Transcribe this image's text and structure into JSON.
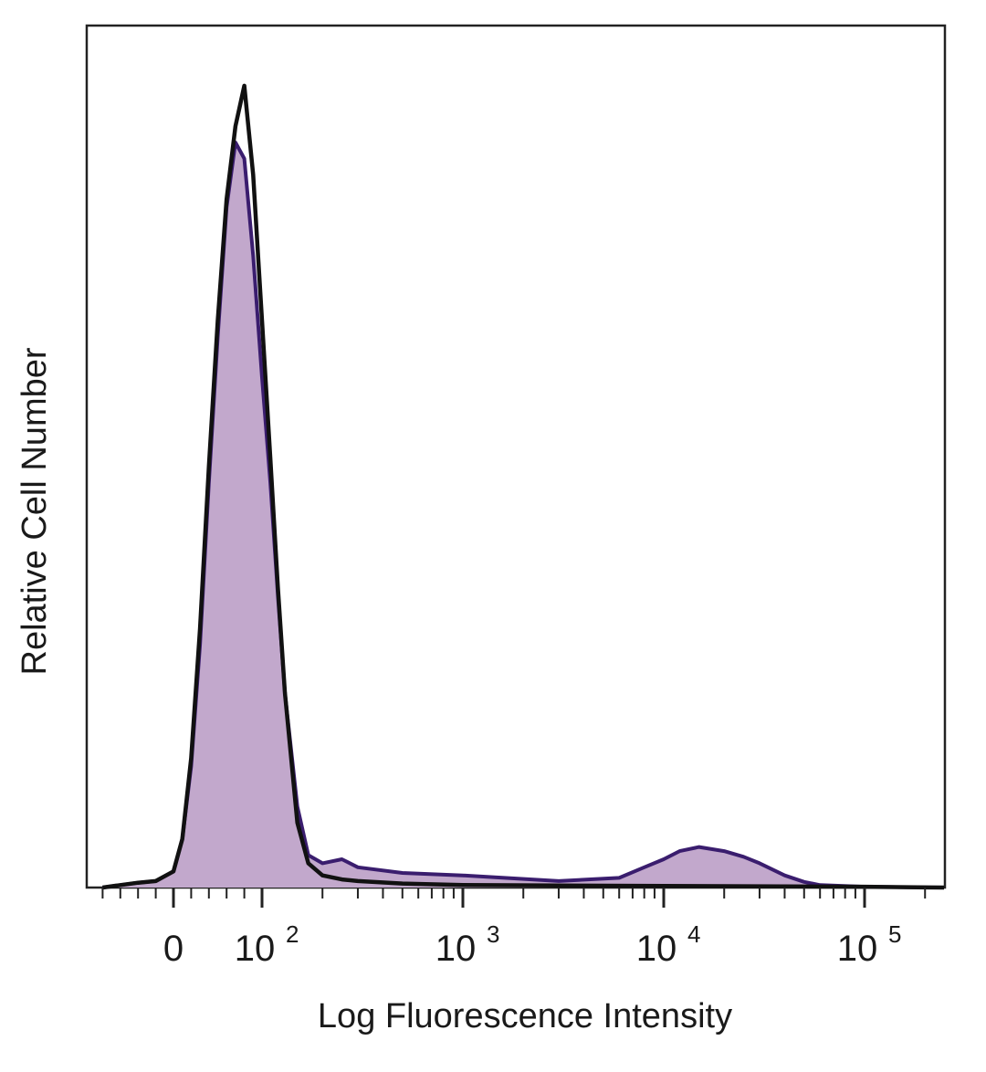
{
  "chart_data": {
    "type": "area",
    "title": "",
    "xlabel": "Log Fluorescence Intensity",
    "ylabel": "Relative Cell Number",
    "x_scale": "biexponential (linear near 0, log above)",
    "xlim": [
      -80,
      250000
    ],
    "ylim": [
      0,
      100
    ],
    "grid": false,
    "legend": "none",
    "x_ticks": [
      {
        "value": 0,
        "base": "0",
        "exp": ""
      },
      {
        "value": 100,
        "base": "10",
        "exp": "2"
      },
      {
        "value": 1000,
        "base": "10",
        "exp": "3"
      },
      {
        "value": 10000,
        "base": "10",
        "exp": "4"
      },
      {
        "value": 100000,
        "base": "10",
        "exp": "5"
      }
    ],
    "series": [
      {
        "style": "filled",
        "fill_color": "#c2a8cc",
        "line_color": "#3a1d6e",
        "x": [
          -80,
          -60,
          -40,
          -20,
          0,
          10,
          20,
          30,
          40,
          50,
          60,
          70,
          80,
          90,
          100,
          110,
          120,
          130,
          150,
          170,
          200,
          250,
          300,
          500,
          1000,
          3000,
          6000,
          8000,
          10000,
          12000,
          15000,
          20000,
          25000,
          30000,
          40000,
          50000,
          60000,
          100000,
          250000
        ],
        "y": [
          0,
          0.3,
          0.6,
          0.8,
          2,
          6,
          15,
          30,
          50,
          68,
          84,
          92,
          90,
          78,
          63,
          50,
          36,
          24,
          10,
          4,
          3,
          3.5,
          2.5,
          1.8,
          1.5,
          0.8,
          1.2,
          2.5,
          3.5,
          4.5,
          5,
          4.5,
          3.8,
          3,
          1.5,
          0.7,
          0.3,
          0.1,
          0
        ]
      },
      {
        "style": "line",
        "line_color": "#111111",
        "x": [
          -80,
          -60,
          -40,
          -20,
          0,
          10,
          20,
          30,
          40,
          50,
          60,
          70,
          80,
          90,
          100,
          110,
          120,
          130,
          150,
          170,
          200,
          250,
          300,
          500,
          1000,
          10000,
          100000,
          250000
        ],
        "y": [
          0,
          0.3,
          0.6,
          0.8,
          2,
          6,
          16,
          32,
          52,
          70,
          85,
          94,
          99,
          88,
          70,
          53,
          37,
          24,
          8,
          3,
          1.5,
          1,
          0.8,
          0.5,
          0.3,
          0.2,
          0.1,
          0
        ]
      }
    ]
  }
}
